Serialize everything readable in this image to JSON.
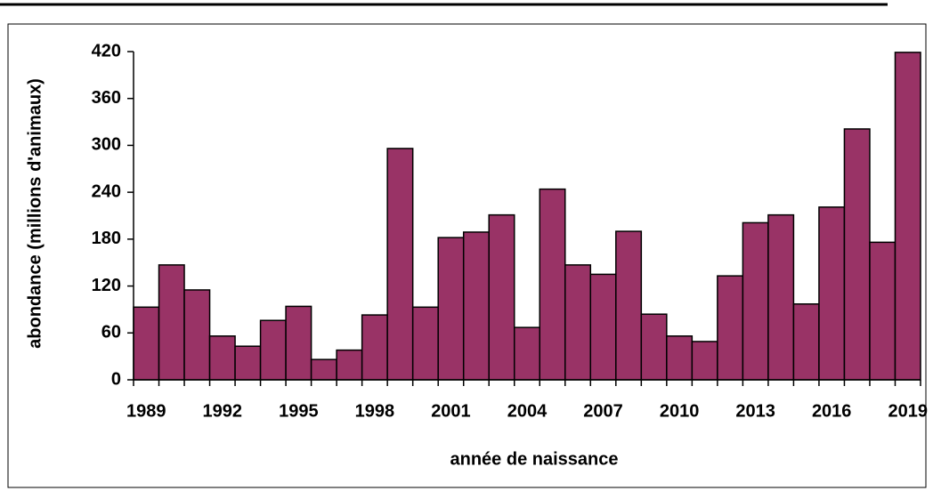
{
  "chart_data": {
    "type": "bar",
    "categories": [
      "1989",
      null,
      null,
      "1992",
      null,
      null,
      "1995",
      null,
      null,
      "1998",
      null,
      null,
      "2001",
      null,
      null,
      "2004",
      null,
      null,
      "2007",
      null,
      null,
      "2010",
      null,
      null,
      "2013",
      null,
      null,
      "2016",
      null,
      null,
      "2019"
    ],
    "values": [
      93,
      147,
      115,
      56,
      43,
      76,
      94,
      26,
      38,
      83,
      296,
      93,
      182,
      189,
      211,
      67,
      244,
      147,
      135,
      190,
      84,
      56,
      49,
      133,
      201,
      211,
      97,
      221,
      321,
      176,
      419
    ],
    "color": "#993366",
    "ylim": [
      0,
      420
    ],
    "yticks": [
      0,
      60,
      120,
      180,
      240,
      300,
      360,
      420
    ],
    "y_label": "abondance (millions d'animaux)",
    "x_label": "année de naissance",
    "grid": false
  }
}
